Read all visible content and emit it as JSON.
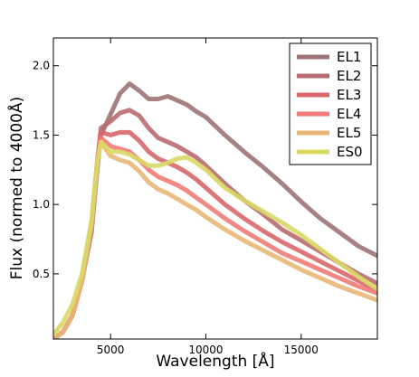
{
  "chart_data": {
    "type": "line",
    "xlabel": "Wavelength [Å]",
    "ylabel": "Flux (normed to 4000Å)",
    "xlim": [
      2000,
      19000
    ],
    "ylim": [
      0.03,
      2.2
    ],
    "xticks": [
      5000,
      10000,
      15000
    ],
    "xtick_labels": [
      "5000",
      "10000",
      "15000"
    ],
    "yticks": [
      0.5,
      1.0,
      1.5,
      2.0
    ],
    "ytick_labels": [
      "0.5",
      "1.0",
      "1.5",
      "2.0"
    ],
    "grid": false,
    "legend_position": "top-right",
    "series": [
      {
        "name": "EL1",
        "color": "#9e7476",
        "x": [
          2000,
          2500,
          3000,
          3500,
          4000,
          4300,
          4500,
          5000,
          5500,
          6000,
          6500,
          7000,
          7500,
          8000,
          8500,
          9000,
          9500,
          10000,
          11000,
          12000,
          13000,
          14000,
          15000,
          16000,
          17000,
          18000,
          19000
        ],
        "y": [
          0.03,
          0.08,
          0.2,
          0.45,
          0.8,
          1.25,
          1.5,
          1.65,
          1.8,
          1.87,
          1.82,
          1.76,
          1.76,
          1.78,
          1.75,
          1.72,
          1.67,
          1.63,
          1.5,
          1.38,
          1.27,
          1.15,
          1.02,
          0.9,
          0.8,
          0.7,
          0.63
        ]
      },
      {
        "name": "EL2",
        "color": "#b86b6f",
        "x": [
          2000,
          2500,
          3000,
          3500,
          4000,
          4300,
          4500,
          5000,
          5500,
          6000,
          6500,
          7000,
          7500,
          8000,
          8500,
          9000,
          9500,
          10000,
          11000,
          12000,
          13000,
          14000,
          15000,
          16000,
          17000,
          18000,
          19000
        ],
        "y": [
          0.03,
          0.08,
          0.2,
          0.45,
          0.85,
          1.3,
          1.55,
          1.6,
          1.66,
          1.68,
          1.64,
          1.55,
          1.48,
          1.45,
          1.42,
          1.38,
          1.34,
          1.28,
          1.15,
          1.03,
          0.93,
          0.82,
          0.74,
          0.66,
          0.58,
          0.5,
          0.43
        ]
      },
      {
        "name": "EL3",
        "color": "#d9676a",
        "x": [
          2000,
          2500,
          3000,
          3500,
          4000,
          4300,
          4500,
          5000,
          5500,
          6000,
          6500,
          7000,
          7500,
          8000,
          8500,
          9000,
          9500,
          10000,
          11000,
          12000,
          13000,
          14000,
          15000,
          16000,
          17000,
          18000,
          19000
        ],
        "y": [
          0.03,
          0.08,
          0.2,
          0.45,
          0.85,
          1.3,
          1.52,
          1.5,
          1.52,
          1.52,
          1.46,
          1.38,
          1.33,
          1.3,
          1.27,
          1.23,
          1.18,
          1.12,
          1.0,
          0.9,
          0.81,
          0.73,
          0.66,
          0.59,
          0.52,
          0.45,
          0.38
        ]
      },
      {
        "name": "EL4",
        "color": "#f07b76",
        "x": [
          2000,
          2500,
          3000,
          3500,
          4000,
          4300,
          4500,
          5000,
          5500,
          6000,
          6500,
          7000,
          7500,
          8000,
          8500,
          9000,
          9500,
          10000,
          11000,
          12000,
          13000,
          14000,
          15000,
          16000,
          17000,
          18000,
          19000
        ],
        "y": [
          0.03,
          0.08,
          0.2,
          0.45,
          0.85,
          1.3,
          1.48,
          1.42,
          1.4,
          1.38,
          1.32,
          1.25,
          1.2,
          1.17,
          1.14,
          1.1,
          1.05,
          1.0,
          0.9,
          0.81,
          0.73,
          0.65,
          0.59,
          0.53,
          0.47,
          0.41,
          0.36
        ]
      },
      {
        "name": "EL5",
        "color": "#e8b778",
        "x": [
          2000,
          2500,
          3000,
          3500,
          4000,
          4300,
          4500,
          5000,
          5500,
          6000,
          6500,
          7000,
          7500,
          8000,
          8500,
          9000,
          9500,
          10000,
          11000,
          12000,
          13000,
          14000,
          15000,
          16000,
          17000,
          18000,
          19000
        ],
        "y": [
          0.03,
          0.08,
          0.2,
          0.45,
          0.85,
          1.3,
          1.45,
          1.35,
          1.32,
          1.3,
          1.24,
          1.16,
          1.11,
          1.08,
          1.04,
          1.0,
          0.96,
          0.91,
          0.82,
          0.74,
          0.67,
          0.6,
          0.53,
          0.47,
          0.41,
          0.36,
          0.31
        ]
      },
      {
        "name": "ES0",
        "color": "#d9d966",
        "x": [
          2000,
          2500,
          3000,
          3500,
          4000,
          4300,
          4500,
          5000,
          5500,
          6000,
          6500,
          7000,
          7500,
          8000,
          8500,
          9000,
          9500,
          10000,
          11000,
          12000,
          13000,
          14000,
          15000,
          16000,
          17000,
          18000,
          19000
        ],
        "y": [
          0.06,
          0.15,
          0.28,
          0.5,
          0.88,
          1.3,
          1.45,
          1.38,
          1.38,
          1.36,
          1.32,
          1.28,
          1.28,
          1.3,
          1.33,
          1.34,
          1.3,
          1.25,
          1.12,
          1.03,
          0.95,
          0.87,
          0.78,
          0.68,
          0.58,
          0.48,
          0.39
        ]
      }
    ]
  }
}
